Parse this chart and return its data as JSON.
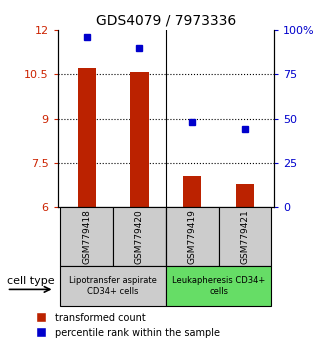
{
  "title": "GDS4079 / 7973336",
  "samples": [
    "GSM779418",
    "GSM779420",
    "GSM779419",
    "GSM779421"
  ],
  "red_values": [
    10.72,
    10.58,
    7.05,
    6.78
  ],
  "blue_values": [
    96,
    90,
    48,
    44
  ],
  "ylim_left": [
    6,
    12
  ],
  "ylim_right": [
    0,
    100
  ],
  "yticks_left": [
    6,
    7.5,
    9,
    10.5,
    12
  ],
  "yticks_right": [
    0,
    25,
    50,
    75,
    100
  ],
  "ytick_labels_left": [
    "6",
    "7.5",
    "9",
    "10.5",
    "12"
  ],
  "ytick_labels_right": [
    "0",
    "25",
    "50",
    "75",
    "100%"
  ],
  "bar_color": "#bb2200",
  "square_color": "#0000cc",
  "group1_label": "Lipotransfer aspirate\nCD34+ cells",
  "group2_label": "Leukapheresis CD34+\ncells",
  "group1_color": "#cccccc",
  "group2_color": "#66dd66",
  "cell_type_label": "cell type",
  "legend_red": "transformed count",
  "legend_blue": "percentile rank within the sample",
  "bar_bottom": 6.0,
  "bar_width": 0.35,
  "dotted_yticks": [
    7.5,
    9,
    10.5
  ]
}
